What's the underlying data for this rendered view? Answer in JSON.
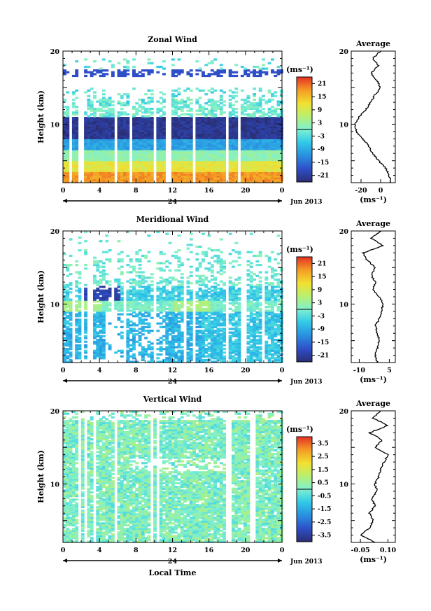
{
  "chart_data": [
    {
      "type": "heatmap",
      "title": "Zonal Wind",
      "ylabel": "Height (km)",
      "ylim": [
        2,
        20
      ],
      "yticks": [
        "20",
        "10"
      ],
      "xlim": [
        0,
        24
      ],
      "xticks": [
        "0",
        "4",
        "8",
        "12",
        "16",
        "20",
        "0"
      ],
      "day_label": "24",
      "month_label": "Jun 2013",
      "colorbar": {
        "unit": "(ms⁻¹)",
        "ticks": [
          "21",
          "15",
          "9",
          "3",
          "-3",
          "-9",
          "-15",
          "-21"
        ],
        "range": [
          -24,
          24
        ]
      },
      "average": {
        "title": "Average",
        "yticks": [
          "20",
          "10"
        ],
        "xticks": [
          "-20",
          "0"
        ],
        "xlim": [
          -30,
          15
        ],
        "unit": "(ms⁻¹)",
        "profile": [
          [
            10,
            2
          ],
          [
            9,
            3
          ],
          [
            5,
            4
          ],
          [
            -2,
            5
          ],
          [
            -8,
            6
          ],
          [
            -12,
            7
          ],
          [
            -18,
            8
          ],
          [
            -25,
            9
          ],
          [
            -26,
            10
          ],
          [
            -22,
            11
          ],
          [
            -15,
            12
          ],
          [
            -10,
            13
          ],
          [
            -6,
            14
          ],
          [
            0,
            15
          ],
          [
            -4,
            16
          ],
          [
            -10,
            17
          ],
          [
            -2,
            18
          ],
          [
            -8,
            19
          ],
          [
            0,
            20
          ]
        ]
      }
    },
    {
      "type": "heatmap",
      "title": "Meridional Wind",
      "ylabel": "Height (km)",
      "ylim": [
        2,
        20
      ],
      "yticks": [
        "20",
        "10"
      ],
      "xlim": [
        0,
        24
      ],
      "xticks": [
        "0",
        "4",
        "8",
        "12",
        "16",
        "20",
        "0"
      ],
      "day_label": "24",
      "month_label": "Jun 2013",
      "colorbar": {
        "unit": "(ms⁻¹)",
        "ticks": [
          "21",
          "15",
          "9",
          "3",
          "-3",
          "-9",
          "-15",
          "-21"
        ],
        "range": [
          -24,
          24
        ]
      },
      "average": {
        "title": "Average",
        "yticks": [
          "20",
          "10"
        ],
        "xticks": [
          "-10",
          "5"
        ],
        "xlim": [
          -14,
          8
        ],
        "unit": "(ms⁻¹)",
        "profile": [
          [
            -1,
            2
          ],
          [
            -2,
            3
          ],
          [
            -1,
            4
          ],
          [
            0,
            5
          ],
          [
            -1,
            6
          ],
          [
            -2,
            7
          ],
          [
            0,
            8
          ],
          [
            1,
            9
          ],
          [
            2,
            10
          ],
          [
            0,
            11
          ],
          [
            -3,
            12
          ],
          [
            -2,
            13
          ],
          [
            -4,
            14
          ],
          [
            -2,
            15
          ],
          [
            -6,
            16
          ],
          [
            -8,
            17
          ],
          [
            2,
            18
          ],
          [
            -4,
            19
          ],
          [
            1,
            20
          ]
        ]
      }
    },
    {
      "type": "heatmap",
      "title": "Vertical Wind",
      "ylabel": "Height (km)",
      "xlabel": "Local Time",
      "ylim": [
        2,
        20
      ],
      "yticks": [
        "20",
        "10"
      ],
      "xlim": [
        0,
        24
      ],
      "xticks": [
        "0",
        "4",
        "8",
        "12",
        "16",
        "20",
        "0"
      ],
      "day_label": "24",
      "month_label": "Jun 2013",
      "colorbar": {
        "unit": "(ms⁻¹)",
        "ticks": [
          "3.5",
          "2.5",
          "1.5",
          "0.5",
          "-0.5",
          "-1.5",
          "-2.5",
          "-3.5"
        ],
        "range": [
          -4,
          4
        ]
      },
      "average": {
        "title": "Average",
        "yticks": [
          "20",
          "10"
        ],
        "xticks": [
          "-0.05",
          "0.10"
        ],
        "xlim": [
          -0.1,
          0.14
        ],
        "unit": "(ms⁻¹)",
        "profile": [
          [
            0.03,
            2
          ],
          [
            -0.05,
            3
          ],
          [
            0.0,
            4
          ],
          [
            0.02,
            5
          ],
          [
            0.0,
            6
          ],
          [
            0.03,
            7
          ],
          [
            0.01,
            8
          ],
          [
            0.04,
            9
          ],
          [
            0.03,
            10
          ],
          [
            0.05,
            11
          ],
          [
            0.06,
            12
          ],
          [
            0.08,
            13
          ],
          [
            0.1,
            14
          ],
          [
            0.03,
            15
          ],
          [
            0.07,
            16
          ],
          [
            0.0,
            17
          ],
          [
            0.1,
            18
          ],
          [
            0.02,
            19
          ],
          [
            0.06,
            20
          ]
        ]
      }
    }
  ]
}
